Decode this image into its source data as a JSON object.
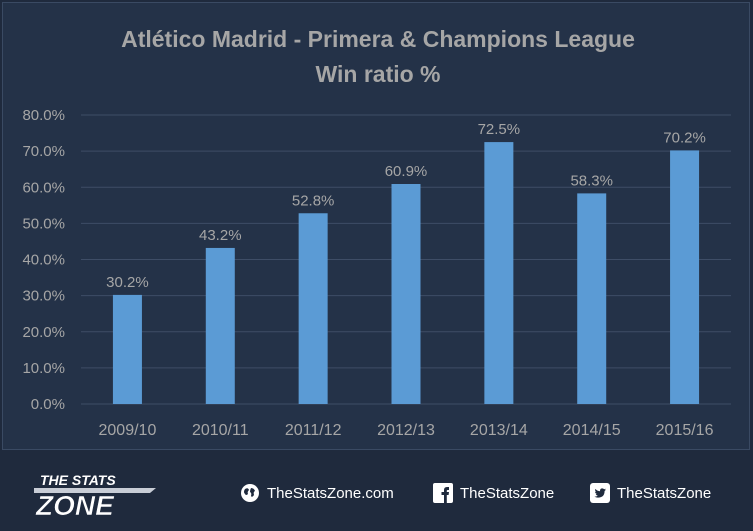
{
  "chart_data": {
    "type": "bar",
    "title": "Atlético Madrid - Primera & Champions League",
    "subtitle": "Win ratio %",
    "categories": [
      "2009/10",
      "2010/11",
      "2011/12",
      "2012/13",
      "2013/14",
      "2014/15",
      "2015/16"
    ],
    "values": [
      30.2,
      43.2,
      52.8,
      60.9,
      72.5,
      58.3,
      70.2
    ],
    "value_labels": [
      "30.2%",
      "43.2%",
      "52.8%",
      "60.9%",
      "72.5%",
      "58.3%",
      "70.2%"
    ],
    "ylim": [
      0,
      80
    ],
    "yticks": [
      0,
      10,
      20,
      30,
      40,
      50,
      60,
      70,
      80
    ],
    "ytick_labels": [
      "0.0%",
      "10.0%",
      "20.0%",
      "30.0%",
      "40.0%",
      "50.0%",
      "60.0%",
      "70.0%",
      "80.0%"
    ],
    "grid": true,
    "legend": "none",
    "bar_color": "#5b9bd5",
    "grid_color": "#3e4d66",
    "text_color": "#a6a6a6"
  },
  "footer": {
    "brand_top": "THE STATS",
    "brand_bottom": "ZONE",
    "website": "TheStatsZone.com",
    "website_icon": "globe-icon",
    "facebook": "TheStatsZone",
    "facebook_icon": "facebook-icon",
    "twitter": "TheStatsZone",
    "twitter_icon": "twitter-icon"
  },
  "colors": {
    "background": "#1f2a3d",
    "panel": "#243248",
    "footer_text": "#ffffff"
  }
}
